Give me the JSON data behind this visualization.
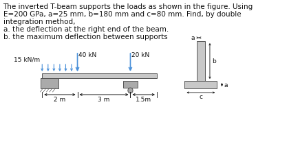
{
  "title_line1": "The inverted T-beam supports the loads as shown in the figure. Using",
  "title_line2": "E=200 GPa, a=25 mm, b=180 mm and c=80 mm. Find, by double",
  "title_line3": "integration method,",
  "sub_a": "a. the deflection at the right end of the beam.",
  "sub_b": "b. the maximum deflection between supports",
  "load1_label": "40 kN",
  "load2_label": "20 kN",
  "dist_load_label": "15 kN/m",
  "dim1": "2 m",
  "dim2": "3 m",
  "dim3": "1.5m",
  "tbeam_label_a": "a",
  "tbeam_label_b": "b",
  "tbeam_label_c": "c",
  "tbeam_label_a2": "a",
  "bg_color": "#ffffff",
  "beam_color": "#c8c8c8",
  "beam_edge_color": "#555555",
  "support_color": "#aaaaaa",
  "text_color": "#111111",
  "arrow_color": "#4a90d9",
  "font_size_title": 7.5,
  "font_size_label": 6.5
}
